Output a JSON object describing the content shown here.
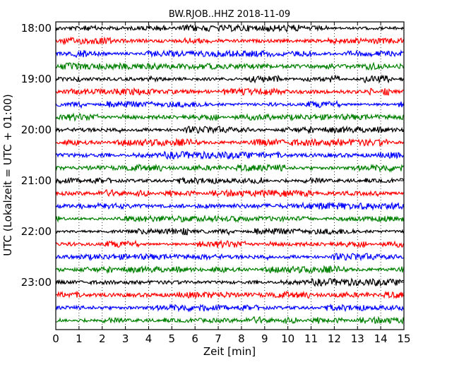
{
  "chart_data": {
    "type": "line",
    "title": "BW.RJOB..HHZ 2018-11-09",
    "xlabel": "Zeit  [min]",
    "ylabel": "UTC (Lokalzeit = UTC + 01:00)",
    "xlim": [
      0,
      15
    ],
    "x_ticks": [
      "0",
      "1",
      "2",
      "3",
      "4",
      "5",
      "6",
      "7",
      "8",
      "9",
      "10",
      "11",
      "12",
      "13",
      "14",
      "15"
    ],
    "y_ticks": [
      "18:00",
      "19:00",
      "20:00",
      "21:00",
      "22:00",
      "23:00"
    ],
    "grid": "vertical dotted",
    "traces_per_hour": 4,
    "trace_minutes_each": 15,
    "trace_start": "18:00",
    "trace_count": 24,
    "color_cycle": [
      "#000000",
      "#ff0000",
      "#0000ff",
      "#008000"
    ]
  }
}
